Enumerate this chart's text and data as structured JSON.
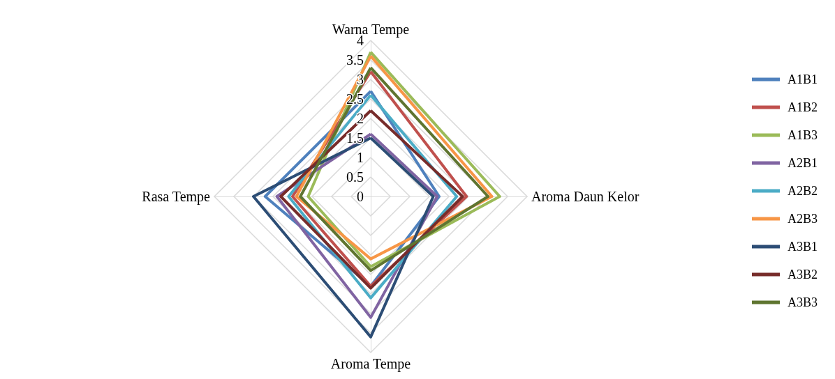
{
  "chart_data": {
    "type": "radar",
    "categories": [
      "Warna Tempe",
      "Aroma Daun Kelor",
      "Aroma Tempe",
      "Rasa Tempe"
    ],
    "ylim": [
      0,
      4
    ],
    "yticks": [
      0,
      0.5,
      1,
      1.5,
      2,
      2.5,
      3,
      3.5,
      4
    ],
    "grid": true,
    "legend": "right",
    "marker": "none",
    "series": [
      {
        "name": "A1B1",
        "color": "#4f81bd",
        "values": [
          2.7,
          1.75,
          2.3,
          2.7
        ]
      },
      {
        "name": "A1B2",
        "color": "#c0504d",
        "values": [
          3.2,
          2.45,
          2.3,
          2.0
        ]
      },
      {
        "name": "A1B3",
        "color": "#9bbb59",
        "values": [
          3.7,
          3.3,
          1.8,
          1.6
        ]
      },
      {
        "name": "A2B1",
        "color": "#8064a2",
        "values": [
          1.6,
          1.7,
          3.1,
          2.4
        ]
      },
      {
        "name": "A2B2",
        "color": "#4bacc6",
        "values": [
          2.6,
          2.2,
          2.6,
          2.1
        ]
      },
      {
        "name": "A2B3",
        "color": "#f79646",
        "values": [
          3.6,
          3.1,
          1.6,
          1.9
        ]
      },
      {
        "name": "A3B1",
        "color": "#2c4d75",
        "values": [
          1.5,
          1.6,
          3.6,
          3.0
        ]
      },
      {
        "name": "A3B2",
        "color": "#772c2a",
        "values": [
          2.2,
          2.35,
          2.35,
          2.3
        ]
      },
      {
        "name": "A3B3",
        "color": "#5f7530",
        "values": [
          3.3,
          3.0,
          1.9,
          1.8
        ]
      }
    ]
  }
}
